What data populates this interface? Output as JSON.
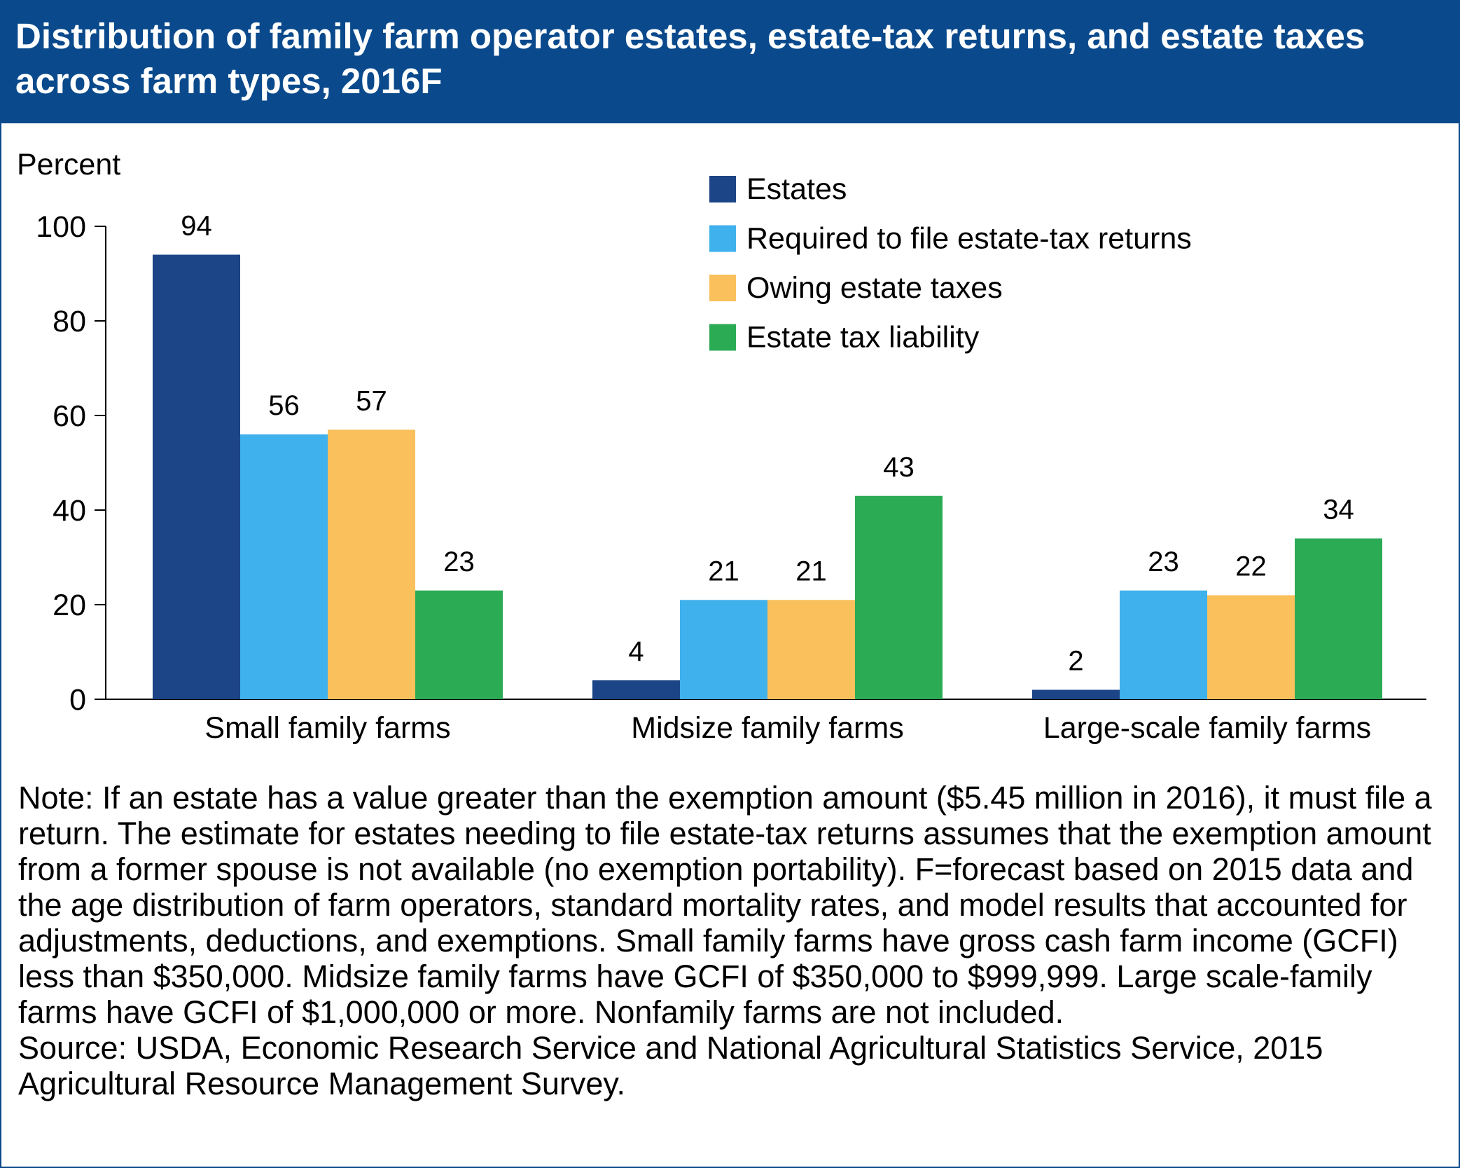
{
  "title": "Distribution of family farm operator estates, estate-tax returns, and estate taxes across farm types, 2016F",
  "colors": {
    "header_bg": "#0a4a8c",
    "Estates": "#1b4586",
    "Required to file estate-tax returns": "#3fb1ec",
    "Owing estate taxes": "#f9c05b",
    "Estate tax liability": "#2cab55"
  },
  "chart_data": {
    "type": "bar",
    "title": "Distribution of family farm operator estates, estate-tax returns, and estate taxes across farm types, 2016F",
    "ylabel": "Percent",
    "xlabel": "",
    "ylim": [
      0,
      100
    ],
    "yticks": [
      0,
      20,
      40,
      60,
      80,
      100
    ],
    "grid": false,
    "legend_position": "top-right",
    "categories": [
      "Small family farms",
      "Midsize family farms",
      "Large-scale family farms"
    ],
    "series": [
      {
        "name": "Estates",
        "values": [
          94,
          4,
          2
        ],
        "color": "#1b4586"
      },
      {
        "name": "Required to file estate-tax returns",
        "values": [
          56,
          21,
          23
        ],
        "color": "#3fb1ec"
      },
      {
        "name": "Owing estate taxes",
        "values": [
          57,
          21,
          22
        ],
        "color": "#f9c05b"
      },
      {
        "name": "Estate tax liability",
        "values": [
          23,
          43,
          34
        ],
        "color": "#2cab55"
      }
    ]
  },
  "note": {
    "text": "Note: If an estate has a value greater than the exemption amount ($5.45 million in 2016), it must file a return. The estimate for estates needing to file estate-tax returns assumes that the exemption amount from a former spouse is not available (no exemption portability). F=forecast based on 2015 data and the age distribution of farm operators, standard mortality rates, and model results that accounted for adjustments, deductions, and exemptions. Small family farms have gross cash farm income (GCFI) less than $350,000. Midsize family farms have GCFI of $350,000 to $999,999. Large scale-family farms have GCFI of $1,000,000 or more. Nonfamily farms are not included.",
    "source": "Source: USDA, Economic Research Service and National Agricultural Statistics Service, 2015 Agricultural Resource Management Survey."
  }
}
